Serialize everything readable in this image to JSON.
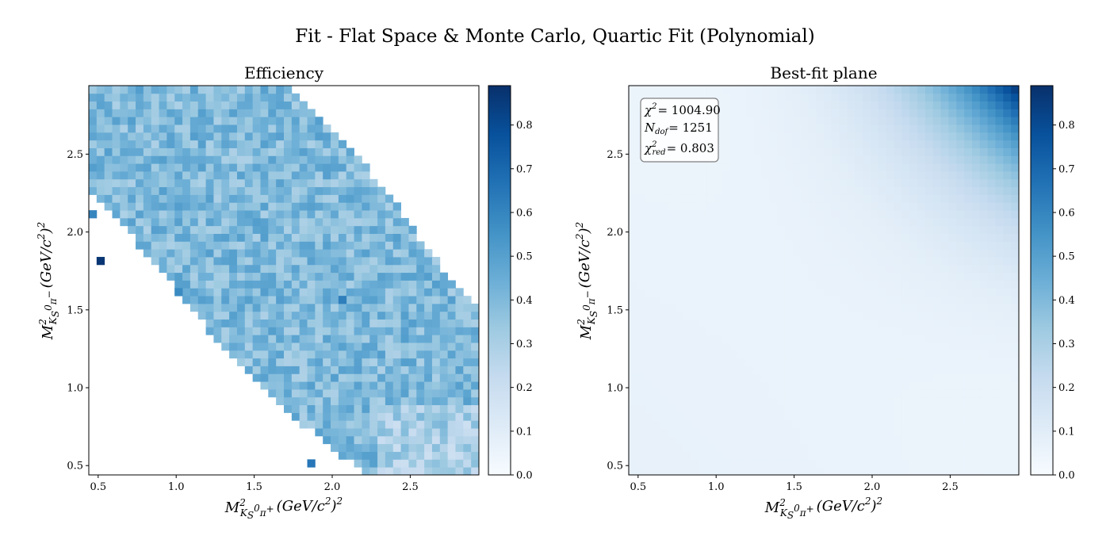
{
  "figure": {
    "title": "Fit - Flat Space & Monte Carlo, Quartic Fit (Polynomial)"
  },
  "colors": {
    "cmap": [
      "#f7fbff",
      "#deebf7",
      "#c6dbef",
      "#9ecae1",
      "#6baed6",
      "#4292c6",
      "#2171b5",
      "#08519c",
      "#08306b"
    ],
    "axis": "#000000",
    "box_edge": "#7f7f7f"
  },
  "labels": {
    "x_main": "M",
    "x_sup": "2",
    "x_sub": "K",
    "x_sub2": "S",
    "x_sup2": "0",
    "x_sub3": "π",
    "x_sup3": "+",
    "x_unit": "(GeV/c",
    "x_unit_sup": "2",
    "x_unit_end": ")",
    "x_unit_sup2": "2",
    "y_main": "M",
    "y_sup": "2",
    "y_sub": "K",
    "y_sub2": "S",
    "y_sup2": "0",
    "y_sub3": "π",
    "y_sup3": "−",
    "y_unit": "(GeV/c",
    "y_unit_sup": "2",
    "y_unit_end": ")",
    "y_unit_sup2": "2"
  },
  "stats": {
    "chi2_sym": "χ",
    "chi2_sup": "2",
    "chi2_val": "= 1004.90",
    "ndof_sym": "N",
    "ndof_sub": "dof",
    "ndof_val": "= 1251",
    "chi2red_sym": "χ",
    "chi2red_sup": "2",
    "chi2red_sub": "red",
    "chi2red_val": "= 0.803"
  },
  "chart_data": [
    {
      "type": "heatmap",
      "title": "Efficiency",
      "xlabel": "M²_{K_S^0 π+} (GeV/c²)²",
      "ylabel": "M²_{K_S^0 π−} (GeV/c²)²",
      "xlim": [
        0.44,
        2.94
      ],
      "ylim": [
        0.44,
        2.94
      ],
      "xticks": [
        0.5,
        1.0,
        1.5,
        2.0,
        2.5
      ],
      "yticks": [
        0.5,
        1.0,
        1.5,
        2.0,
        2.5
      ],
      "xtick_labels": [
        "0.5",
        "1.0",
        "1.5",
        "2.0",
        "2.5"
      ],
      "ytick_labels": [
        "0.5",
        "1.0",
        "1.5",
        "2.0",
        "2.5"
      ],
      "bins": [
        50,
        50
      ],
      "region": "Dalitz kinematic band between x + y ≈ 2.6 and x + y ≈ 4.6; empty outside",
      "typical_value": 0.4,
      "value_range_in_band": [
        0.2,
        0.55
      ],
      "outliers": [
        {
          "x": 0.48,
          "y": 2.12,
          "value": 0.6
        },
        {
          "x": 0.52,
          "y": 1.82,
          "value": 0.87
        },
        {
          "x": 2.08,
          "y": 1.55,
          "value": 0.62
        },
        {
          "x": 1.02,
          "y": 1.6,
          "value": 0.58
        },
        {
          "x": 1.87,
          "y": 0.52,
          "value": 0.65
        }
      ],
      "colorbar": {
        "min": 0.0,
        "max": 0.89,
        "ticks": [
          0.0,
          0.1,
          0.2,
          0.3,
          0.4,
          0.5,
          0.6,
          0.7,
          0.8
        ],
        "tick_labels": [
          "0.0",
          "0.1",
          "0.2",
          "0.3",
          "0.4",
          "0.5",
          "0.6",
          "0.7",
          "0.8"
        ]
      }
    },
    {
      "type": "heatmap",
      "title": "Best-fit plane",
      "xlabel": "M²_{K_S^0 π+} (GeV/c²)²",
      "ylabel": "M²_{K_S^0 π−} (GeV/c²)²",
      "xlim": [
        0.44,
        2.94
      ],
      "ylim": [
        0.44,
        2.94
      ],
      "xticks": [
        0.5,
        1.0,
        1.5,
        2.0,
        2.5
      ],
      "yticks": [
        0.5,
        1.0,
        1.5,
        2.0,
        2.5
      ],
      "xtick_labels": [
        "0.5",
        "1.0",
        "1.5",
        "2.0",
        "2.5"
      ],
      "ytick_labels": [
        "0.5",
        "1.0",
        "1.5",
        "2.0",
        "2.5"
      ],
      "bins": [
        50,
        50
      ],
      "description": "Smooth quartic polynomial surface: near 0.05 over most of the plane, rising steeply to about 0.89 at the top-right corner (x≈2.9, y≈2.9)",
      "corner_value": 0.89,
      "base_value": 0.05,
      "colorbar": {
        "min": 0.0,
        "max": 0.89,
        "ticks": [
          0.0,
          0.1,
          0.2,
          0.3,
          0.4,
          0.5,
          0.6,
          0.7,
          0.8
        ],
        "tick_labels": [
          "0.0",
          "0.1",
          "0.2",
          "0.3",
          "0.4",
          "0.5",
          "0.6",
          "0.7",
          "0.8"
        ]
      },
      "stats_box": {
        "chi2": 1004.9,
        "ndof": 1251,
        "chi2_red": 0.803
      }
    }
  ]
}
